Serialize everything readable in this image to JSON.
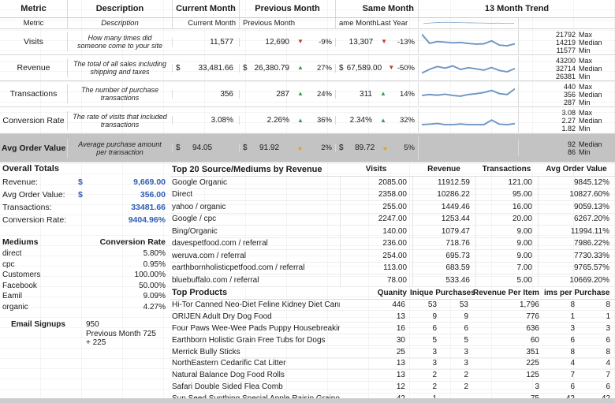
{
  "colors": {
    "accent_blue": "#2f5db3",
    "sparkline_blue": "#6d96c2",
    "band_gray": "#c3c3c3",
    "up_green": "#2e9e4f",
    "down_red": "#c0392b",
    "flat_amber": "#e2a117"
  },
  "metrics_table": {
    "headers": {
      "metric": "Metric",
      "description": "Description",
      "current": "Current Month",
      "previous": "Previous Month",
      "same": "Same Month",
      "trend": "13 Month Trend"
    },
    "subheaders": {
      "metric": "Metric",
      "description": "Description",
      "current": "Current Month",
      "previous": "Previous Month",
      "same": "ame MonthLast Year"
    },
    "header_spark": [
      0.5,
      0.6,
      0.68,
      0.72,
      0.7,
      0.66,
      0.63,
      0.6,
      0.58,
      0.56,
      0.58,
      0.5,
      0.55
    ],
    "rows": [
      {
        "row_class": "r-visits",
        "metric": "Visits",
        "desc": "How many times did someone come to your site",
        "cur_sym": "",
        "cur": "11,577",
        "prev_sym": "",
        "prev": "12,690",
        "prev_dir": "dir-down",
        "prev_pct": "-9%",
        "same_sym": "",
        "same": "13,307",
        "same_dir": "dir-down",
        "same_pct": "-13%",
        "spark": [
          1.0,
          0.45,
          0.56,
          0.52,
          0.48,
          0.5,
          0.44,
          0.4,
          0.42,
          0.6,
          0.34,
          0.3,
          0.42
        ],
        "s1n": "21792",
        "s1l": "Max",
        "s2n": "14219",
        "s2l": "Median",
        "s3n": "11577",
        "s3l": "Min"
      },
      {
        "row_class": "r-revenue",
        "metric": "Revenue",
        "desc": "The total of all sales including shipping and taxes",
        "cur_sym": "$",
        "cur": "33,481.66",
        "prev_sym": "$",
        "prev": "26,380.79",
        "prev_dir": "dir-up",
        "prev_pct": "27%",
        "same_sym": "$",
        "same": "67,589.00",
        "same_dir": "dir-down",
        "same_pct": "-50%",
        "spark": [
          0.22,
          0.45,
          0.62,
          0.52,
          0.66,
          0.44,
          0.55,
          0.48,
          0.4,
          0.56,
          0.38,
          0.3,
          0.5
        ],
        "s1n": "43200",
        "s1l": "Max",
        "s2n": "32714",
        "s2l": "Median",
        "s3n": "26381",
        "s3l": "Min"
      },
      {
        "row_class": "r-transactions",
        "metric": "Transactions",
        "desc": "The number of purchase transactions",
        "cur_sym": "",
        "cur": "356",
        "prev_sym": "",
        "prev": "287",
        "prev_dir": "dir-up",
        "prev_pct": "24%",
        "same_sym": "",
        "same": "311",
        "same_dir": "dir-up",
        "same_pct": "14%",
        "spark": [
          0.45,
          0.5,
          0.46,
          0.52,
          0.44,
          0.4,
          0.5,
          0.55,
          0.62,
          0.75,
          0.56,
          0.5,
          0.85
        ],
        "s1n": "440",
        "s1l": "Max",
        "s2n": "356",
        "s2l": "Median",
        "s3n": "287",
        "s3l": "Min"
      },
      {
        "row_class": "r-conversion",
        "metric": "Conversion Rate",
        "desc": "The rate of visits that included transactions",
        "cur_sym": "",
        "cur": "3.08%",
        "prev_sym": "",
        "prev": "2.26%",
        "prev_dir": "dir-up",
        "prev_pct": "36%",
        "same_sym": "",
        "same": "2.34%",
        "same_dir": "dir-up",
        "same_pct": "32%",
        "spark": [
          0.3,
          0.33,
          0.37,
          0.3,
          0.3,
          0.34,
          0.3,
          0.3,
          0.3,
          0.58,
          0.33,
          0.3,
          0.36
        ],
        "s1n": "3.08",
        "s1l": "Max",
        "s2n": "2.27",
        "s2l": "Median",
        "s3n": "1.82",
        "s3l": "Min"
      },
      {
        "row_class": "r-aov gray leftvals",
        "metric": "Avg Order Value",
        "desc": "Average purchase amount per transaction",
        "cur_sym": "$",
        "cur": "94.05",
        "prev_sym": "$",
        "prev": "91.92",
        "prev_dir": "dir-diag",
        "prev_pct": "2%",
        "same_sym": "$",
        "same": "89.72",
        "same_dir": "dir-diag",
        "same_pct": "5%",
        "spark": [],
        "s1n": "92",
        "s1l": "Median",
        "s2n": "86",
        "s2l": "Min",
        "s3n": "",
        "s3l": ""
      }
    ]
  },
  "overall_totals": {
    "title": "Overall Totals",
    "rows": [
      {
        "label": "Revenue:",
        "sym": "$",
        "value": "9,669.00"
      },
      {
        "label": "Avg Order Value:",
        "sym": "$",
        "value": "356.00"
      },
      {
        "label": "Transactions:",
        "sym": "",
        "value": "33481.66"
      },
      {
        "label": "Conversion Rate:",
        "sym": "",
        "value": "9404.96%"
      }
    ]
  },
  "mediums": {
    "title": "Mediums",
    "rate_header": "Conversion Rate",
    "rows": [
      {
        "name": "direct",
        "rate": "5.80%"
      },
      {
        "name": "cpc",
        "rate": "0.95%"
      },
      {
        "name": "Customers",
        "rate": "100.00%"
      },
      {
        "name": "Facebook",
        "rate": "50.00%"
      },
      {
        "name": "Eamil",
        "rate": "9.09%"
      },
      {
        "name": "organic",
        "rate": "4.27%"
      }
    ]
  },
  "email_signups": {
    "label": "Email Signups",
    "lines": {
      "l1": "950",
      "l2": "Previous Month 725",
      "l3": "+ 225"
    }
  },
  "top_sources": {
    "title": "Top 20 Source/Mediums by Revenue",
    "columns": [
      "Visits",
      "Revenue",
      "Transactions",
      "Avg Order Value"
    ],
    "rows": [
      {
        "name": "Google Organic",
        "visits": "2085.00",
        "revenue": "11912.59",
        "transactions": "121.00",
        "aov": "9845.12%"
      },
      {
        "name": "Direct",
        "visits": "2358.00",
        "revenue": "10286.22",
        "transactions": "95.00",
        "aov": "10827.60%"
      },
      {
        "name": "yahoo / organic",
        "visits": "255.00",
        "revenue": "1449.46",
        "transactions": "16.00",
        "aov": "9059.13%"
      },
      {
        "name": "Google / cpc",
        "visits": "2247.00",
        "revenue": "1253.44",
        "transactions": "20.00",
        "aov": "6267.20%"
      },
      {
        "name": "Bing/Organic",
        "visits": "140.00",
        "revenue": "1079.47",
        "transactions": "9.00",
        "aov": "11994.11%"
      },
      {
        "name": "davespetfood.com / referral",
        "visits": "236.00",
        "revenue": "718.76",
        "transactions": "9.00",
        "aov": "7986.22%"
      },
      {
        "name": "weruva.com / referral",
        "visits": "254.00",
        "revenue": "695.73",
        "transactions": "9.00",
        "aov": "7730.33%"
      },
      {
        "name": "earthbornholisticpetfood.com / referral",
        "visits": "113.00",
        "revenue": "683.59",
        "transactions": "7.00",
        "aov": "9765.57%"
      },
      {
        "name": "bluebuffalo.com / referral",
        "visits": "78.00",
        "revenue": "533.46",
        "transactions": "5.00",
        "aov": "10669.20%"
      }
    ]
  },
  "top_products": {
    "title": "Top Products",
    "columns": [
      "Quanity",
      "Inique Purchases",
      "Revenue Per Item",
      "ims per Purchase"
    ],
    "rows": [
      {
        "name": "Hi-Tor Canned Neo-Diet Feline Kidney Diet Canned F",
        "q": "446",
        "u1": "53",
        "u2": "53",
        "rev": "1,796",
        "i1": "8",
        "i2": "8"
      },
      {
        "name": "ORIJEN Adult Dry Dog Food",
        "q": "13",
        "u1": "9",
        "u2": "9",
        "rev": "776",
        "i1": "1",
        "i2": "1"
      },
      {
        "name": "Four Paws Wee-Wee Pads Puppy Housebreaking P",
        "q": "16",
        "u1": "6",
        "u2": "6",
        "rev": "636",
        "i1": "3",
        "i2": "3"
      },
      {
        "name": "Earthborn Holistic Grain Free Tubs for Dogs",
        "q": "30",
        "u1": "5",
        "u2": "5",
        "rev": "60",
        "i1": "6",
        "i2": "6"
      },
      {
        "name": "Merrick Bully Sticks",
        "q": "25",
        "u1": "3",
        "u2": "3",
        "rev": "351",
        "i1": "8",
        "i2": "8"
      },
      {
        "name": "NorthEastern Cedarific Cat Litter",
        "q": "13",
        "u1": "3",
        "u2": "3",
        "rev": "225",
        "i1": "4",
        "i2": "4"
      },
      {
        "name": "Natural Balance Dog Food Rolls",
        "q": "13",
        "u1": "2",
        "u2": "2",
        "rev": "125",
        "i1": "7",
        "i2": "7"
      },
      {
        "name": "Safari Double Sided Flea Comb",
        "q": "12",
        "u1": "2",
        "u2": "2",
        "rev": "3",
        "i1": "6",
        "i2": "6"
      },
      {
        "name": "Sun Seed Sunthing Special Apple Raisin Grainola E",
        "q": "42",
        "u1": "1",
        "u2": "",
        "rev": "75",
        "i1": "42",
        "i2": "42"
      },
      {
        "name": "Four Paws Wee-Wee Pads Extra Large Puppy Hous",
        "q": "12",
        "u1": "1",
        "u2": "",
        "rev": "644",
        "i1": "28",
        "i2": "28"
      }
    ]
  }
}
